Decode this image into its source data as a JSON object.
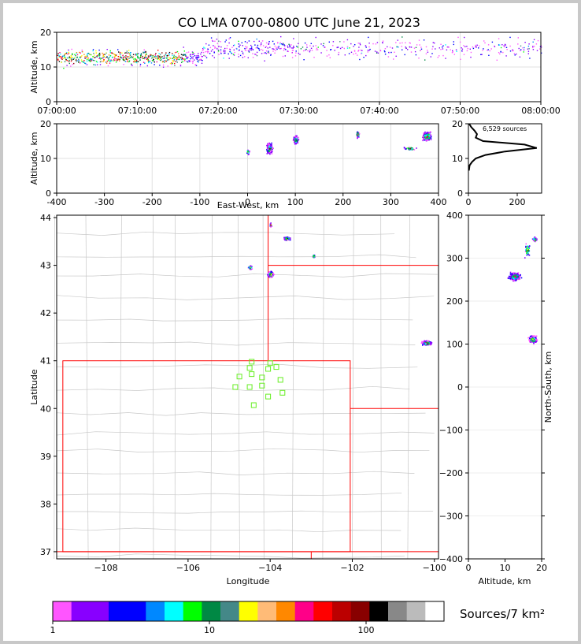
{
  "title": "CO LMA 0700-0800 UTC June 21, 2023",
  "chart_data": [
    {
      "id": "time-height",
      "type": "scatter",
      "xlabel": "",
      "ylabel": "Altitude, km",
      "x_ticks": [
        "07:00:00",
        "07:10:00",
        "07:20:00",
        "07:30:00",
        "07:40:00",
        "07:50:00",
        "08:00:00"
      ],
      "xlim_minutes": [
        0,
        60
      ],
      "ylim": [
        0,
        20
      ],
      "y_ticks": [
        0,
        10,
        20
      ],
      "grid": true
    },
    {
      "id": "ew-altitude",
      "type": "scatter",
      "xlabel": "East-West, km",
      "ylabel": "Altitude, km",
      "xlim": [
        -400,
        400
      ],
      "x_ticks": [
        -400,
        -300,
        -200,
        -100,
        0,
        100,
        200,
        300,
        400
      ],
      "ylim": [
        0,
        20
      ],
      "y_ticks": [
        0,
        10,
        20
      ],
      "grid": true
    },
    {
      "id": "altitude-histogram",
      "type": "line",
      "annotation": "6,529 sources",
      "xlim": [
        0,
        300
      ],
      "x_ticks": [
        0,
        200
      ],
      "ylim": [
        0,
        20
      ],
      "y_ticks": [
        0,
        10,
        20
      ],
      "profile": [
        {
          "count": 2,
          "alt": 6.5
        },
        {
          "count": 5,
          "alt": 8
        },
        {
          "count": 15,
          "alt": 9
        },
        {
          "count": 30,
          "alt": 10
        },
        {
          "count": 70,
          "alt": 11
        },
        {
          "count": 150,
          "alt": 12
        },
        {
          "count": 280,
          "alt": 13
        },
        {
          "count": 230,
          "alt": 14
        },
        {
          "count": 60,
          "alt": 15
        },
        {
          "count": 30,
          "alt": 16
        },
        {
          "count": 35,
          "alt": 17
        },
        {
          "count": 25,
          "alt": 18
        },
        {
          "count": 12,
          "alt": 19
        },
        {
          "count": 3,
          "alt": 20
        }
      ]
    },
    {
      "id": "plan-view",
      "type": "scatter",
      "xlabel": "Longitude",
      "ylabel": "Latitude",
      "xlim": [
        -109.2,
        -99.9
      ],
      "ylim": [
        36.85,
        44.05
      ],
      "x_ticks": [
        -108,
        -106,
        -104,
        -102,
        -100
      ],
      "y_ticks": [
        37,
        38,
        39,
        40,
        41,
        42,
        43,
        44
      ],
      "stations": [
        {
          "lon": -104.5,
          "lat": 40.85
        },
        {
          "lon": -104.0,
          "lat": 40.95
        },
        {
          "lon": -104.45,
          "lat": 40.98
        },
        {
          "lon": -103.85,
          "lat": 40.87
        },
        {
          "lon": -104.05,
          "lat": 40.83
        },
        {
          "lon": -104.75,
          "lat": 40.67
        },
        {
          "lon": -104.45,
          "lat": 40.72
        },
        {
          "lon": -104.2,
          "lat": 40.65
        },
        {
          "lon": -103.75,
          "lat": 40.6
        },
        {
          "lon": -104.85,
          "lat": 40.45
        },
        {
          "lon": -104.5,
          "lat": 40.45
        },
        {
          "lon": -104.2,
          "lat": 40.48
        },
        {
          "lon": -103.7,
          "lat": 40.33
        },
        {
          "lon": -104.05,
          "lat": 40.25
        },
        {
          "lon": -104.4,
          "lat": 40.07
        }
      ]
    },
    {
      "id": "ns-altitude",
      "type": "scatter",
      "xlabel": "Altitude, km",
      "ylabel": "North-South, km",
      "xlim": [
        0,
        20
      ],
      "x_ticks": [
        0,
        10,
        20
      ],
      "ylim": [
        -400,
        400
      ],
      "y_ticks": [
        -400,
        -300,
        -200,
        -100,
        0,
        100,
        200,
        300,
        400
      ]
    },
    {
      "id": "colorbar",
      "type": "heatmap",
      "label": "Sources/7 km²",
      "ticks": [
        "1",
        "10",
        "100"
      ],
      "colors": [
        "#ff55ff",
        "#8800ff",
        "#8800ff",
        "#0000ff",
        "#0000ff",
        "#0088ff",
        "#00ffff",
        "#00ff00",
        "#008844",
        "#448888",
        "#ffff00",
        "#ffbb77",
        "#ff8800",
        "#ff0088",
        "#ff0000",
        "#bb0000",
        "#880000",
        "#000000",
        "#888888",
        "#bbbbbb",
        "#ffffff"
      ]
    }
  ]
}
